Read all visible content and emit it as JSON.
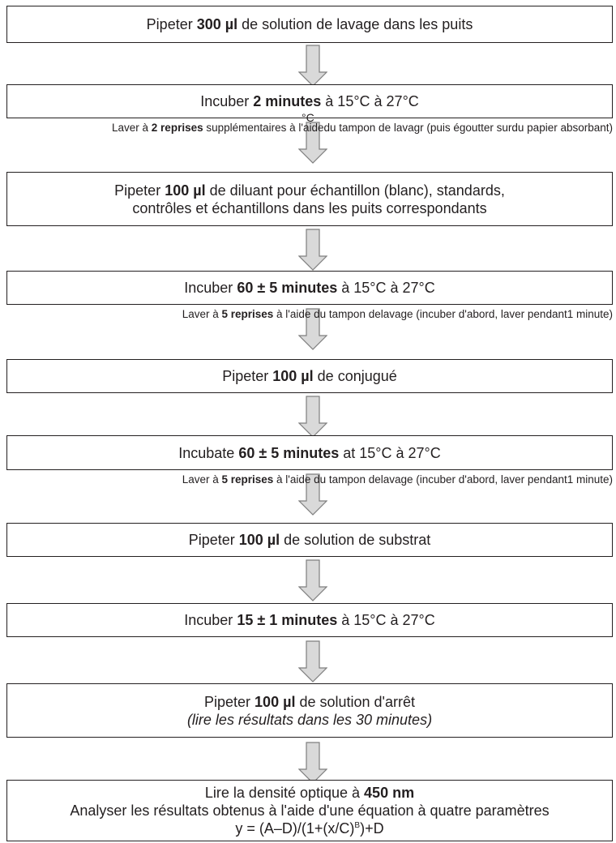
{
  "steps": [
    {
      "parts": [
        {
          "t": "Pipeter "
        },
        {
          "t": "300 µl",
          "b": true
        },
        {
          "t": " de solution de lavage dans les puits"
        }
      ]
    },
    {
      "parts": [
        {
          "t": "Incuber "
        },
        {
          "t": "2 minutes",
          "b": true
        },
        {
          "t": " à 15°C à 27°C"
        }
      ]
    },
    {
      "lines": [
        [
          {
            "t": "Pipeter "
          },
          {
            "t": "100 µl",
            "b": true
          },
          {
            "t": " de diluant pour échantillon (blanc), standards,"
          }
        ],
        [
          {
            "t": "contrôles et échantillons dans les puits correspondants"
          }
        ]
      ]
    },
    {
      "parts": [
        {
          "t": "Incuber "
        },
        {
          "t": "60 ± 5 minutes",
          "b": true
        },
        {
          "t": " à 15°C à 27°C"
        }
      ]
    },
    {
      "parts": [
        {
          "t": "Pipeter "
        },
        {
          "t": "100 µl",
          "b": true
        },
        {
          "t": " de conjugué"
        }
      ]
    },
    {
      "parts": [
        {
          "t": "Incubate "
        },
        {
          "t": "60 ± 5 minutes",
          "b": true
        },
        {
          "t": " at 15°C à 27°C"
        }
      ]
    },
    {
      "parts": [
        {
          "t": "Pipeter "
        },
        {
          "t": "100 µl",
          "b": true
        },
        {
          "t": " de solution de substrat"
        }
      ]
    },
    {
      "parts": [
        {
          "t": "Incuber "
        },
        {
          "t": "15 ± 1 minutes",
          "b": true
        },
        {
          "t": " à 15°C à 27°C"
        }
      ]
    },
    {
      "lines": [
        [
          {
            "t": "Pipeter "
          },
          {
            "t": "100 µl",
            "b": true
          },
          {
            "t": " de solution d'arrêt"
          }
        ],
        [
          {
            "t": "(lire les résultats dans les 30 minutes)",
            "i": true
          }
        ]
      ]
    },
    {
      "lines": [
        [
          {
            "t": "Lire la densité optique à "
          },
          {
            "t": "450 nm",
            "b": true
          }
        ],
        [
          {
            "t": "Analyser les résultats obtenus à l'aide d'une équation à quatre paramètres"
          }
        ],
        [
          {
            "t": "y = (A–D)/(1+(x/C)"
          },
          {
            "t": "B",
            "sup": true
          },
          {
            "t": ")+D"
          }
        ]
      ]
    }
  ],
  "notes": [
    {
      "lines": [
        [
          {
            "t": "Laver à "
          },
          {
            "t": "2 reprises",
            "b": true
          },
          {
            "t": " supplémentaires à l'aide"
          }
        ],
        [
          {
            "t": "du tampon de lavagr (puis égoutter sur"
          }
        ],
        [
          {
            "t": "du papier absorbant)"
          }
        ]
      ]
    },
    {
      "lines": [
        [
          {
            "t": "Laver à "
          },
          {
            "t": "5 reprises",
            "b": true
          },
          {
            "t": " à l'aide du tampon de"
          }
        ],
        [
          {
            "t": "lavage (incuber d'abord, laver pendant"
          }
        ],
        [
          {
            "t": "1 minute)"
          }
        ]
      ]
    },
    {
      "lines": [
        [
          {
            "t": "Laver à "
          },
          {
            "t": "5 reprises",
            "b": true
          },
          {
            "t": " à l'aide du tampon de"
          }
        ],
        [
          {
            "t": "lavage (incuber d'abord, laver pendant"
          }
        ],
        [
          {
            "t": "1 minute)"
          }
        ]
      ]
    }
  ],
  "stray_fragment": "°C",
  "colors": {
    "stroke": "#231f20",
    "arrow_fill": "#d9d9d9",
    "arrow_stroke": "#7f7f7f"
  }
}
